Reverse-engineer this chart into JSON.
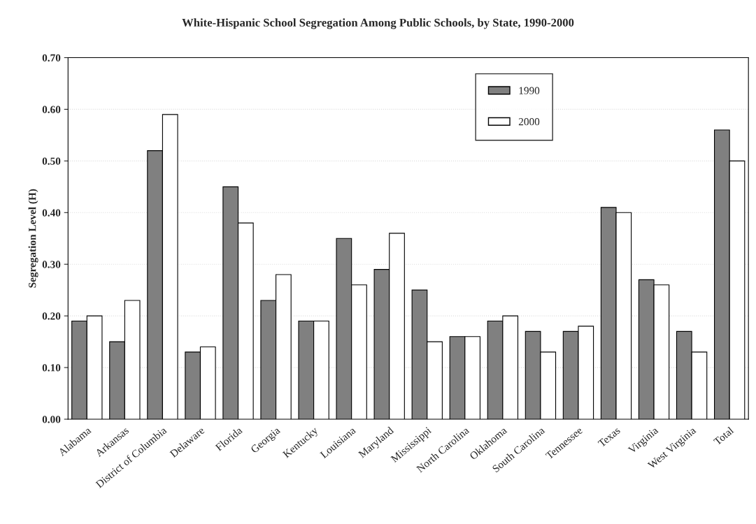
{
  "chart_data": {
    "type": "bar",
    "title": "White-Hispanic School Segregation Among Public Schools, by State, 1990-2000",
    "ylabel": "Segregation Level (H)",
    "categories": [
      "Alabama",
      "Arkansas",
      "District of Columbia",
      "Delaware",
      "Florida",
      "Georgia",
      "Kentucky",
      "Louisiana",
      "Maryland",
      "Mississippi",
      "North Carolina",
      "Oklahoma",
      "South Carolina",
      "Tennessee",
      "Texas",
      "Virginia",
      "West Virginia",
      "Total"
    ],
    "series": [
      {
        "name": "1990",
        "color": "#808080",
        "values": [
          0.19,
          0.15,
          0.52,
          0.13,
          0.45,
          0.23,
          0.19,
          0.35,
          0.29,
          0.25,
          0.16,
          0.19,
          0.17,
          0.17,
          0.41,
          0.27,
          0.17,
          0.56
        ]
      },
      {
        "name": "2000",
        "color": "#ffffff",
        "values": [
          0.2,
          0.23,
          0.59,
          0.14,
          0.38,
          0.28,
          0.19,
          0.26,
          0.36,
          0.15,
          0.16,
          0.2,
          0.13,
          0.18,
          0.4,
          0.26,
          0.13,
          0.5
        ]
      }
    ],
    "ylim": [
      0,
      0.7
    ],
    "yticks": [
      {
        "value": 0,
        "label": "0.00"
      },
      {
        "value": 0.1,
        "label": "0.10"
      },
      {
        "value": 0.2,
        "label": "0.20"
      },
      {
        "value": 0.3,
        "label": "0.30"
      },
      {
        "value": 0.4,
        "label": "0.40"
      },
      {
        "value": 0.5,
        "label": "0.50"
      },
      {
        "value": 0.6,
        "label": "0.60"
      },
      {
        "value": 0.7,
        "label": "0.70"
      }
    ],
    "legend": "top right",
    "grid": "y"
  }
}
